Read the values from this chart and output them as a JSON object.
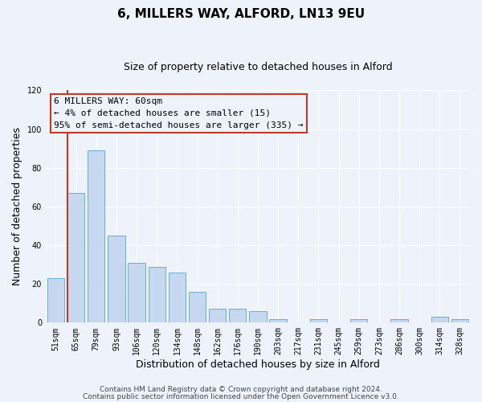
{
  "title": "6, MILLERS WAY, ALFORD, LN13 9EU",
  "subtitle": "Size of property relative to detached houses in Alford",
  "xlabel": "Distribution of detached houses by size in Alford",
  "ylabel": "Number of detached properties",
  "categories": [
    "51sqm",
    "65sqm",
    "79sqm",
    "93sqm",
    "106sqm",
    "120sqm",
    "134sqm",
    "148sqm",
    "162sqm",
    "176sqm",
    "190sqm",
    "203sqm",
    "217sqm",
    "231sqm",
    "245sqm",
    "259sqm",
    "273sqm",
    "286sqm",
    "300sqm",
    "314sqm",
    "328sqm"
  ],
  "values": [
    23,
    67,
    89,
    45,
    31,
    29,
    26,
    16,
    7,
    7,
    6,
    2,
    0,
    2,
    0,
    2,
    0,
    2,
    0,
    3,
    2
  ],
  "bar_color": "#c5d8f0",
  "bar_edge_color": "#6aaed6",
  "highlight_color": "#c0392b",
  "ylim": [
    0,
    120
  ],
  "yticks": [
    0,
    20,
    40,
    60,
    80,
    100,
    120
  ],
  "annotation_line1": "6 MILLERS WAY: 60sqm",
  "annotation_line2": "← 4% of detached houses are smaller (15)",
  "annotation_line3": "95% of semi-detached houses are larger (335) →",
  "footer_line1": "Contains HM Land Registry data © Crown copyright and database right 2024.",
  "footer_line2": "Contains public sector information licensed under the Open Government Licence v3.0.",
  "background_color": "#eef2fb",
  "grid_color": "#ffffff",
  "title_fontsize": 11,
  "subtitle_fontsize": 9,
  "axis_label_fontsize": 9,
  "tick_fontsize": 7,
  "annotation_fontsize": 8,
  "footer_fontsize": 6.5
}
